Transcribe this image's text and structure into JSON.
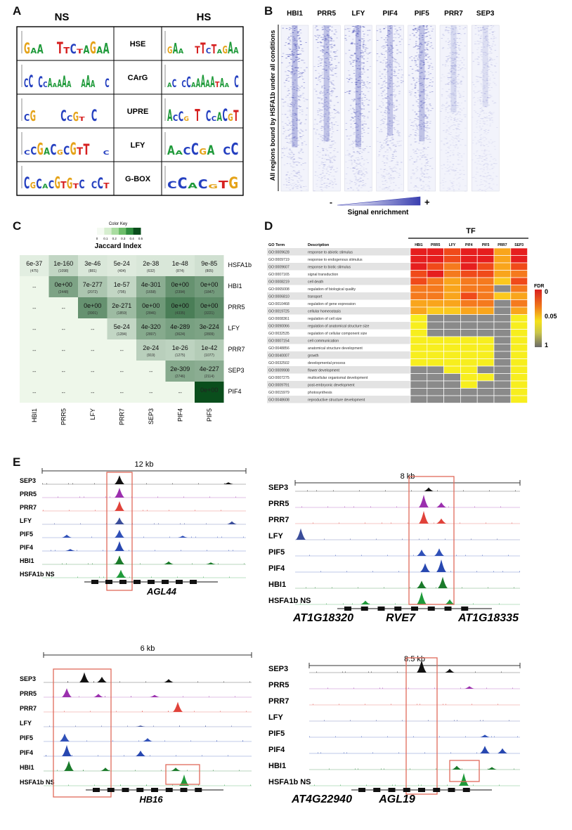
{
  "panels": {
    "A": "A",
    "B": "B",
    "C": "C",
    "D": "D",
    "E": "E"
  },
  "panel_a": {
    "col_left": "NS",
    "col_right": "HS",
    "motifs": [
      "HSE",
      "CArG",
      "UPRE",
      "LFY",
      "G-BOX"
    ],
    "logos_left": [
      "GAA..TTCTAGAA",
      "CC.CCAAAAA..AAA..C",
      "CG....CCGT.C..",
      "CCGACGCGTT..C",
      "CGCACGTGTC.CCT"
    ],
    "logos_right": [
      "GAA..TTCTAGAA",
      "AC.CCAAAAATAA.C",
      "ACCG.T.CCACGT",
      "AACCGA.CC",
      "CCACGTG"
    ]
  },
  "panel_b": {
    "tfs": [
      "HBI1",
      "PRR5",
      "LFY",
      "PIF4",
      "PIF5",
      "PRR7",
      "SEP3"
    ],
    "side_label": "All regions bound by HSFA1b under all conditions",
    "minus": "-",
    "plus": "+",
    "enrichment_label": "Signal enrichment"
  },
  "panel_c": {
    "color_key_title": "Color Key",
    "key_ticks": [
      "0",
      "0.1",
      "0.2",
      "0.3",
      "0.4",
      "0.5"
    ],
    "key_label": "Jaccard Index",
    "row_labels": [
      "HSFA1b",
      "HBI1",
      "PRR5",
      "LFY",
      "PRR7",
      "SEP3",
      "PIF4"
    ],
    "col_labels": [
      "HBI1",
      "PRR5",
      "LFY",
      "PRR7",
      "SEP3",
      "PIF4",
      "PIF5"
    ],
    "na": "--",
    "cells": [
      [
        {
          "p": "6e-37",
          "n": "(475)",
          "j": 0.03
        },
        {
          "p": "1e-160",
          "n": "(1098)",
          "j": 0.1
        },
        {
          "p": "3e-46",
          "n": "(881)",
          "j": 0.05
        },
        {
          "p": "5e-24",
          "n": "(404)",
          "j": 0.04
        },
        {
          "p": "2e-38",
          "n": "(632)",
          "j": 0.05
        },
        {
          "p": "1e-48",
          "n": "(874)",
          "j": 0.05
        },
        {
          "p": "9e-85",
          "n": "(805)",
          "j": 0.07
        }
      ],
      [
        null,
        {
          "p": "0e+00",
          "n": "(2448)",
          "j": 0.25
        },
        {
          "p": "7e-277",
          "n": "(2072)",
          "j": 0.15
        },
        {
          "p": "1e-57",
          "n": "(795)",
          "j": 0.1
        },
        {
          "p": "4e-301",
          "n": "(1658)",
          "j": 0.22
        },
        {
          "p": "0e+00",
          "n": "(2394)",
          "j": 0.3
        },
        {
          "p": "0e+00",
          "n": "(1847)",
          "j": 0.27
        }
      ],
      [
        null,
        null,
        {
          "p": "0e+00",
          "n": "(3901)",
          "j": 0.3
        },
        {
          "p": "2e-271",
          "n": "(1859)",
          "j": 0.18
        },
        {
          "p": "0e+00",
          "n": "(2846)",
          "j": 0.28
        },
        {
          "p": "0e+00",
          "n": "(4335)",
          "j": 0.36
        },
        {
          "p": "0e+00",
          "n": "(3221)",
          "j": 0.32
        }
      ],
      [
        null,
        null,
        null,
        {
          "p": "5e-24",
          "n": "(1284)",
          "j": 0.1
        },
        {
          "p": "4e-320",
          "n": "(2807)",
          "j": 0.23
        },
        {
          "p": "4e-289",
          "n": "(3624)",
          "j": 0.26
        },
        {
          "p": "3e-224",
          "n": "(2809)",
          "j": 0.25
        }
      ],
      [
        null,
        null,
        null,
        null,
        {
          "p": "2e-24",
          "n": "(919)",
          "j": 0.12
        },
        {
          "p": "1e-26",
          "n": "(1275)",
          "j": 0.11
        },
        {
          "p": "1e-42",
          "n": "(1077)",
          "j": 0.13
        }
      ],
      [
        null,
        null,
        null,
        null,
        null,
        {
          "p": "2e-309",
          "n": "(2746)",
          "j": 0.23
        },
        {
          "p": "4e-227",
          "n": "(2114)",
          "j": 0.22
        }
      ],
      [
        null,
        null,
        null,
        null,
        null,
        null,
        {
          "p": "0e+00",
          "n": "",
          "j": 0.5
        }
      ]
    ]
  },
  "panel_d": {
    "tf_label": "TF",
    "header_goterm": "GO Term",
    "header_desc": "Description",
    "tfs": [
      "HBI1",
      "PRR5",
      "LFY",
      "PIF4",
      "PIF5",
      "PRR7",
      "SEP3"
    ],
    "fdr_label": "FDR",
    "fdr_ticks": [
      "0",
      "0.05",
      "1"
    ],
    "rows": [
      {
        "id": "GO:0009628",
        "desc": "response to abiotic stimulus",
        "v": [
          0,
          0,
          1,
          0,
          0,
          3,
          0
        ]
      },
      {
        "id": "GO:0009719",
        "desc": "response to endogenous stimulus",
        "v": [
          0,
          0,
          1,
          0,
          0,
          3,
          0
        ]
      },
      {
        "id": "GO:0009607",
        "desc": "response to biotic stimulus",
        "v": [
          0,
          1,
          2,
          0,
          1,
          3,
          1
        ]
      },
      {
        "id": "GO:0007165",
        "desc": "signal transduction",
        "v": [
          1,
          0,
          2,
          1,
          1,
          3,
          2
        ]
      },
      {
        "id": "GO:0008219",
        "desc": "cell death",
        "v": [
          1,
          2,
          3,
          2,
          2,
          4,
          1
        ]
      },
      {
        "id": "GO:0065008",
        "desc": "regulation of biological quality",
        "v": [
          2,
          2,
          3,
          2,
          2,
          6,
          2
        ]
      },
      {
        "id": "GO:0006810",
        "desc": "transport",
        "v": [
          2,
          2,
          3,
          1,
          2,
          4,
          3
        ]
      },
      {
        "id": "GO:0010468",
        "desc": "regulation of gene expression",
        "v": [
          3,
          3,
          3,
          2,
          2,
          6,
          2
        ]
      },
      {
        "id": "GO:0019725",
        "desc": "cellular homeostasis",
        "v": [
          3,
          4,
          4,
          3,
          3,
          6,
          3
        ]
      },
      {
        "id": "GO:0008361",
        "desc": "regulation of cell size",
        "v": [
          5,
          6,
          6,
          6,
          6,
          6,
          5
        ]
      },
      {
        "id": "GO:0090066",
        "desc": "regulation of anatomical structure size",
        "v": [
          5,
          6,
          6,
          6,
          6,
          6,
          5
        ]
      },
      {
        "id": "GO:0032535",
        "desc": "regulation of cellular component size",
        "v": [
          5,
          6,
          6,
          6,
          6,
          6,
          5
        ]
      },
      {
        "id": "GO:0007154",
        "desc": "cell communication",
        "v": [
          5,
          5,
          5,
          5,
          5,
          6,
          5
        ]
      },
      {
        "id": "GO:0048856",
        "desc": "anatomical structure development",
        "v": [
          5,
          5,
          5,
          5,
          5,
          6,
          5
        ]
      },
      {
        "id": "GO:0040007",
        "desc": "growth",
        "v": [
          5,
          5,
          5,
          5,
          5,
          6,
          5
        ]
      },
      {
        "id": "GO:0032502",
        "desc": "developmental process",
        "v": [
          5,
          5,
          5,
          5,
          5,
          6,
          5
        ]
      },
      {
        "id": "GO:0009908",
        "desc": "flower development",
        "v": [
          6,
          6,
          5,
          5,
          6,
          6,
          5
        ]
      },
      {
        "id": "GO:0007275",
        "desc": "multicellular organismal development",
        "v": [
          6,
          6,
          6,
          5,
          5,
          6,
          5
        ]
      },
      {
        "id": "GO:0009791",
        "desc": "post-embryonic development",
        "v": [
          6,
          6,
          6,
          5,
          6,
          6,
          5
        ]
      },
      {
        "id": "GO:0015979",
        "desc": "photosynthesis",
        "v": [
          6,
          6,
          6,
          6,
          6,
          6,
          5
        ]
      },
      {
        "id": "GO:0048608",
        "desc": "reproductive structure development",
        "v": [
          6,
          6,
          6,
          6,
          6,
          6,
          5
        ]
      }
    ]
  },
  "panel_e": {
    "colors": {
      "SEP3": "#111111",
      "PRR5": "#9b2fae",
      "PRR7": "#e0423a",
      "LFY": "#3a4d9a",
      "PIF5": "#2f50b8",
      "PIF4": "#2747b0",
      "HBI1": "#1a7a2a",
      "HSFA1b NS": "#1f9a3a",
      "box": "#e06a5a"
    },
    "loci": [
      {
        "scale": "12 kb",
        "tracks": [
          "SEP3",
          "PRR5",
          "PRR7",
          "LFY",
          "PIF5",
          "PIF4",
          "HBI1",
          "HSFA1b NS"
        ],
        "genes": [
          "AGL44"
        ]
      },
      {
        "scale": "8 kb",
        "tracks": [
          "SEP3",
          "PRR5",
          "PRR7",
          "LFY",
          "PIF5",
          "PIF4",
          "HBI1",
          "HSFA1b NS"
        ],
        "genes": [
          "AT1G18320",
          "RVE7",
          "AT1G18335"
        ]
      },
      {
        "scale": "6 kb",
        "tracks": [
          "SEP3",
          "PRR5",
          "PRR7",
          "LFY",
          "PIF5",
          "PIF4",
          "HBI1",
          "HSFA1b NS"
        ],
        "genes": [
          "HB16"
        ]
      },
      {
        "scale": "8.5 kb",
        "tracks": [
          "SEP3",
          "PRR5",
          "PRR7",
          "LFY",
          "PIF5",
          "PIF4",
          "HBI1",
          "HSFA1b NS"
        ],
        "genes": [
          "AT4G22940",
          "AGL19"
        ]
      }
    ]
  }
}
